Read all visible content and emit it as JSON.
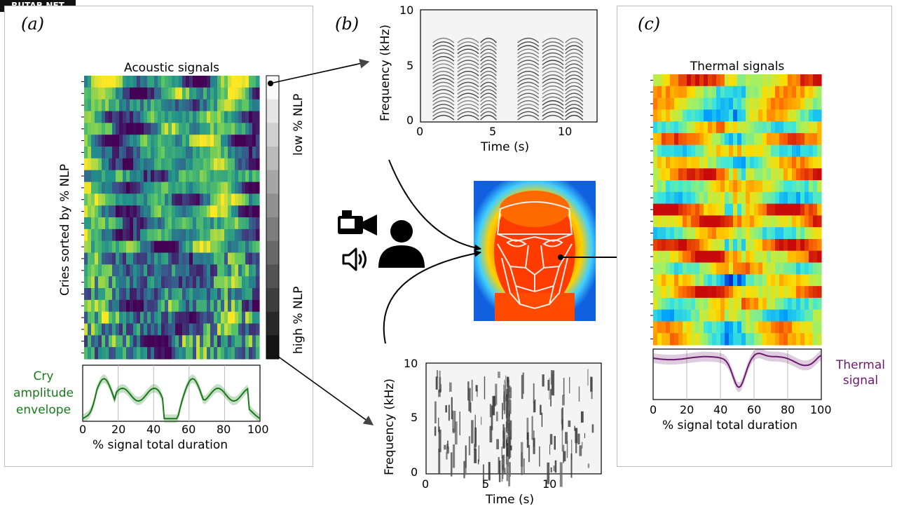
{
  "watermark": "RUTAB.NET",
  "panels": {
    "a": "(a)",
    "b": "(b)",
    "c": "(c)"
  },
  "acoustic": {
    "title": "Acoustic signals",
    "ylabel": "Cries sorted by % NLP",
    "colorbar_top": "low % NLP",
    "colorbar_bottom": "high % NLP"
  },
  "envelope": {
    "label_lines": [
      "Cry",
      "amplitude",
      "envelope"
    ],
    "xlabel": "% signal total duration",
    "xticks": [
      "0",
      "20",
      "40",
      "60",
      "80",
      "100"
    ],
    "color": "#1a7a1a"
  },
  "spec_top": {
    "ylabel": "Frequency (kHz)",
    "xlabel": "Time (s)",
    "yticks": [
      "10",
      "5",
      "0"
    ],
    "xticks": [
      "0",
      "5",
      "10"
    ]
  },
  "spec_bottom": {
    "ylabel": "Frequency (kHz)",
    "xlabel": "Time (s)",
    "yticks": [
      "10",
      "5",
      "0"
    ],
    "xticks": [
      "0",
      "5",
      "10"
    ]
  },
  "thermal": {
    "title": "Thermal signals",
    "signal_label_lines": [
      "Thermal",
      "signal"
    ],
    "xlabel": "% signal total duration",
    "xticks": [
      "0",
      "20",
      "40",
      "60",
      "80",
      "100"
    ],
    "color": "#6b1a6b"
  },
  "icons": [
    "video-camera-icon",
    "speaker-icon",
    "person-icon"
  ]
}
